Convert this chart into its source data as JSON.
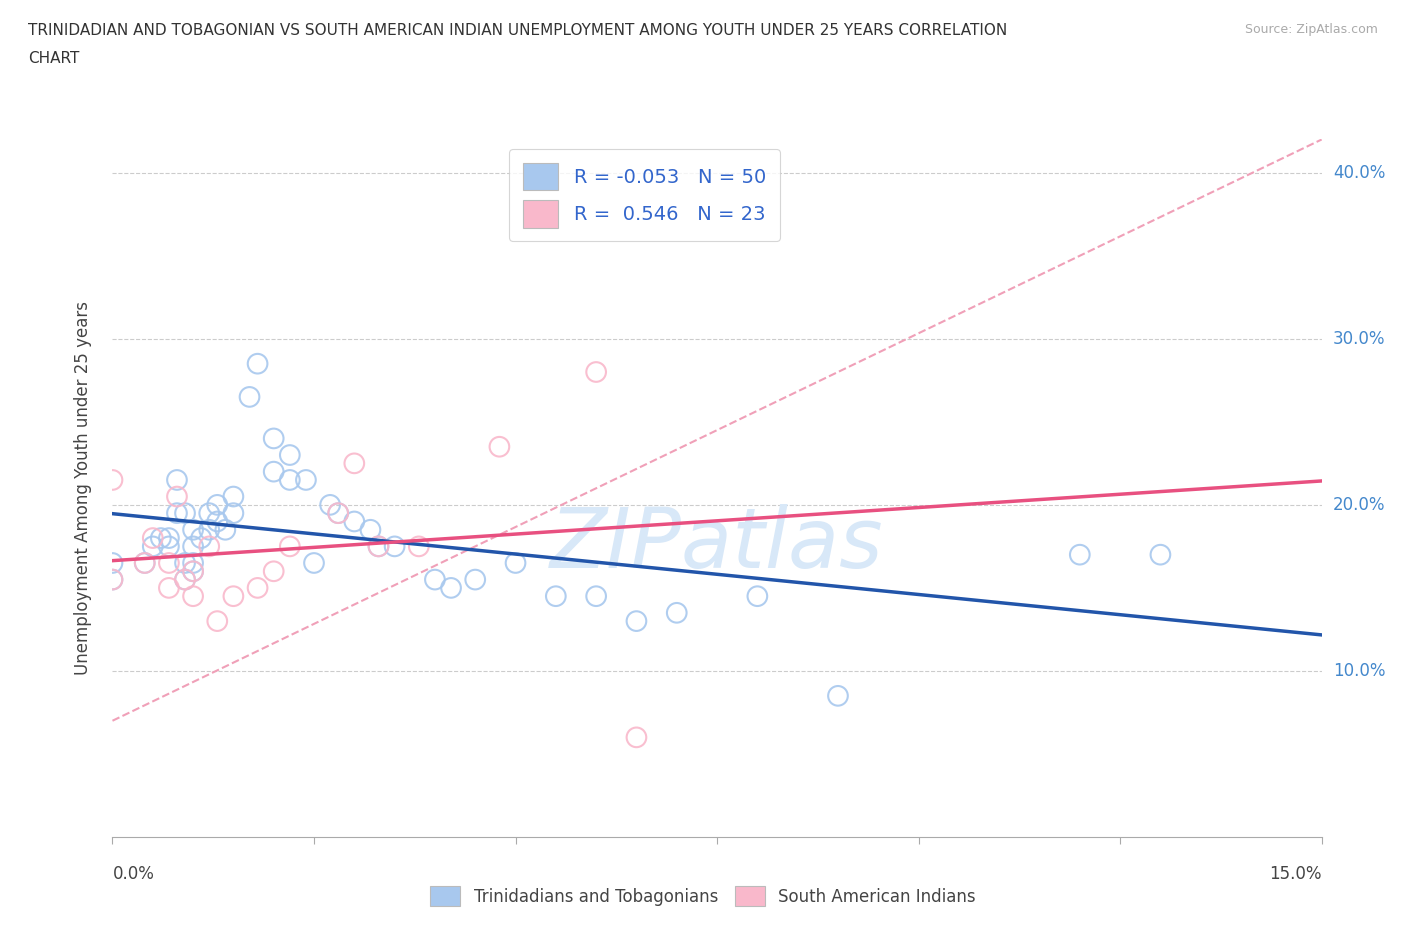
{
  "title_line1": "TRINIDADIAN AND TOBAGONIAN VS SOUTH AMERICAN INDIAN UNEMPLOYMENT AMONG YOUTH UNDER 25 YEARS CORRELATION",
  "title_line2": "CHART",
  "source_text": "Source: ZipAtlas.com",
  "ylabel": "Unemployment Among Youth under 25 years",
  "xlim": [
    0.0,
    0.15
  ],
  "ylim": [
    0.0,
    0.42
  ],
  "y_ticks": [
    0.1,
    0.2,
    0.3,
    0.4
  ],
  "y_tick_labels": [
    "10.0%",
    "20.0%",
    "30.0%",
    "40.0%"
  ],
  "legend_labels": [
    "Trinidadians and Tobagonians",
    "South American Indians"
  ],
  "legend_R": [
    -0.053,
    0.546
  ],
  "legend_N": [
    50,
    23
  ],
  "blue_color": "#A8C8EE",
  "pink_color": "#F9B8CB",
  "blue_line_color": "#2255AA",
  "pink_line_color": "#E85080",
  "dash_line_color": "#F0A0B8",
  "watermark_color": "#D8E8F8",
  "blue_scatter_x": [
    0.0,
    0.0,
    0.004,
    0.005,
    0.006,
    0.007,
    0.007,
    0.008,
    0.008,
    0.009,
    0.009,
    0.009,
    0.01,
    0.01,
    0.01,
    0.01,
    0.011,
    0.012,
    0.012,
    0.013,
    0.013,
    0.014,
    0.015,
    0.015,
    0.017,
    0.018,
    0.02,
    0.02,
    0.022,
    0.022,
    0.024,
    0.025,
    0.027,
    0.028,
    0.03,
    0.032,
    0.033,
    0.035,
    0.04,
    0.042,
    0.045,
    0.05,
    0.055,
    0.06,
    0.065,
    0.07,
    0.08,
    0.09,
    0.12,
    0.13
  ],
  "blue_scatter_y": [
    0.155,
    0.165,
    0.165,
    0.175,
    0.18,
    0.175,
    0.18,
    0.215,
    0.195,
    0.155,
    0.165,
    0.195,
    0.16,
    0.165,
    0.175,
    0.185,
    0.18,
    0.185,
    0.195,
    0.19,
    0.2,
    0.185,
    0.195,
    0.205,
    0.265,
    0.285,
    0.22,
    0.24,
    0.23,
    0.215,
    0.215,
    0.165,
    0.2,
    0.195,
    0.19,
    0.185,
    0.175,
    0.175,
    0.155,
    0.15,
    0.155,
    0.165,
    0.145,
    0.145,
    0.13,
    0.135,
    0.145,
    0.085,
    0.17,
    0.17
  ],
  "pink_scatter_x": [
    0.0,
    0.0,
    0.004,
    0.005,
    0.007,
    0.007,
    0.008,
    0.009,
    0.01,
    0.01,
    0.012,
    0.013,
    0.015,
    0.018,
    0.02,
    0.022,
    0.028,
    0.03,
    0.033,
    0.038,
    0.048,
    0.06,
    0.065
  ],
  "pink_scatter_y": [
    0.155,
    0.215,
    0.165,
    0.18,
    0.15,
    0.165,
    0.205,
    0.155,
    0.145,
    0.16,
    0.175,
    0.13,
    0.145,
    0.15,
    0.16,
    0.175,
    0.195,
    0.225,
    0.175,
    0.175,
    0.235,
    0.28,
    0.06
  ]
}
